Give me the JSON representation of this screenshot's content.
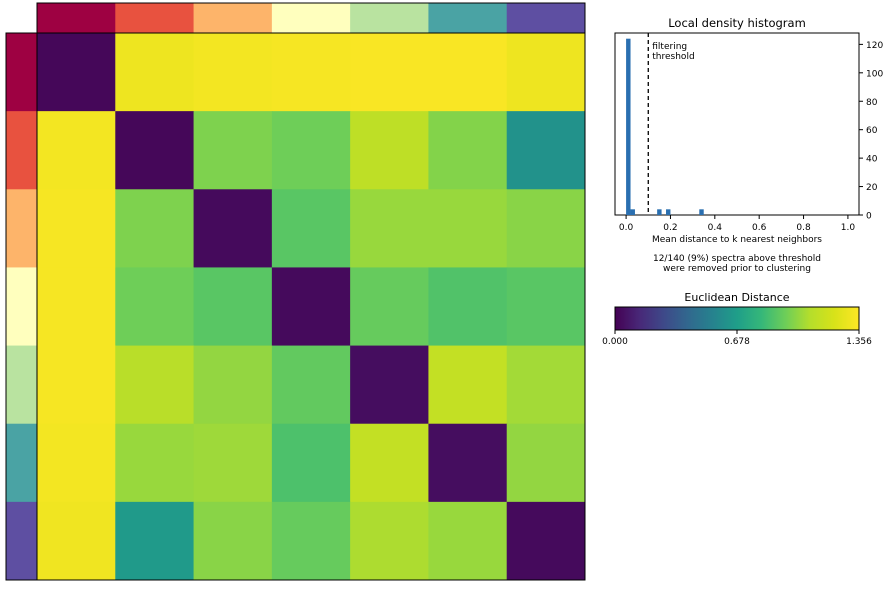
{
  "chart_data": [
    {
      "type": "heatmap",
      "title": "",
      "description_of_axes": "",
      "n_clusters": 7,
      "cluster_colors": [
        "#9e0142",
        "#e8523f",
        "#fdb46a",
        "#ffffbe",
        "#b9e3a0",
        "#4aa3a4",
        "#5e4fa2"
      ],
      "cluster_sizes": [
        1,
        1,
        1,
        1,
        1,
        1,
        1
      ],
      "matrix": [
        [
          0.02,
          1.3,
          1.32,
          1.33,
          1.34,
          1.34,
          1.3
        ],
        [
          1.32,
          0.02,
          0.98,
          0.95,
          1.12,
          0.99,
          0.62
        ],
        [
          1.33,
          0.98,
          0.03,
          0.9,
          1.03,
          1.03,
          1.0
        ],
        [
          1.33,
          0.95,
          0.9,
          0.03,
          0.93,
          0.88,
          0.9
        ],
        [
          1.33,
          1.1,
          1.02,
          0.92,
          0.04,
          1.14,
          1.05
        ],
        [
          1.32,
          1.03,
          1.04,
          0.87,
          1.14,
          0.04,
          1.02
        ],
        [
          1.31,
          0.66,
          1.0,
          0.93,
          1.07,
          1.03,
          0.03
        ]
      ],
      "vmin": 0.0,
      "vmax": 1.356,
      "colormap": "viridis"
    },
    {
      "type": "bar",
      "title": "Local density histogram",
      "xlabel": "Mean distance to k nearest neighbors",
      "ylabel": "",
      "xlim": [
        -0.05,
        1.05
      ],
      "ylim": [
        0,
        128
      ],
      "xticks": [
        "0.0",
        "0.2",
        "0.4",
        "0.6",
        "0.8",
        "1.0"
      ],
      "yticks": [
        "0",
        "20",
        "40",
        "60",
        "80",
        "100",
        "120"
      ],
      "bins": [
        {
          "x": 0.01,
          "count": 124
        },
        {
          "x": 0.03,
          "count": 4
        },
        {
          "x": 0.15,
          "count": 4
        },
        {
          "x": 0.19,
          "count": 4
        },
        {
          "x": 0.34,
          "count": 4
        }
      ],
      "bin_width": 0.02,
      "bar_color": "#2a6fb0",
      "threshold": 0.1,
      "threshold_label": [
        "filtering",
        "threshold"
      ],
      "caption": [
        "12/140 (9%) spectra above threshold",
        "were removed prior to clustering"
      ]
    },
    {
      "type": "colorbar",
      "title": "Euclidean Distance",
      "ticks": [
        "0.000",
        "0.678",
        "1.356"
      ],
      "tick_values": [
        0.0,
        0.678,
        1.356
      ],
      "vmin": 0.0,
      "vmax": 1.356,
      "colormap": "viridis"
    }
  ]
}
